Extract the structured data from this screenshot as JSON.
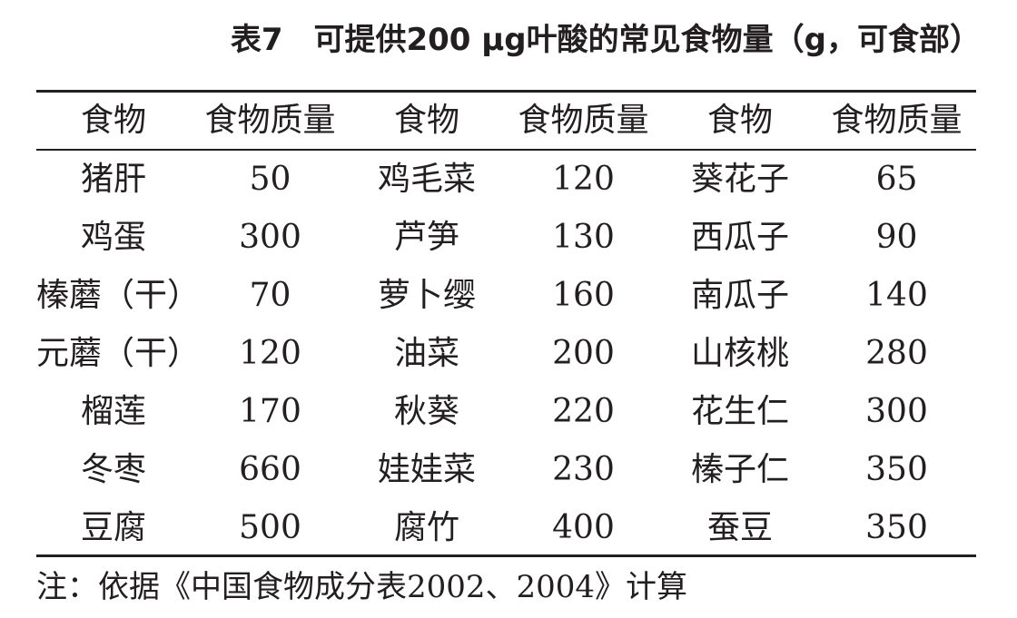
{
  "table": {
    "caption": "表7　可提供200 μg叶酸的常见食物量（g，可食部）",
    "headers": [
      "食物",
      "食物质量",
      "食物",
      "食物质量",
      "食物",
      "食物质量"
    ],
    "rows": [
      [
        "猪肝",
        "50",
        "鸡毛菜",
        "120",
        "葵花子",
        "65"
      ],
      [
        "鸡蛋",
        "300",
        "芦笋",
        "130",
        "西瓜子",
        "90"
      ],
      [
        "榛蘑（干）",
        "70",
        "萝卜缨",
        "160",
        "南瓜子",
        "140"
      ],
      [
        "元蘑（干）",
        "120",
        "油菜",
        "200",
        "山核桃",
        "280"
      ],
      [
        "榴莲",
        "170",
        "秋葵",
        "220",
        "花生仁",
        "300"
      ],
      [
        "冬枣",
        "660",
        "娃娃菜",
        "230",
        "榛子仁",
        "350"
      ],
      [
        "豆腐",
        "500",
        "腐竹",
        "400",
        "蚕豆",
        "350"
      ]
    ],
    "note": "注：依据《中国食物成分表2002、2004》计算"
  }
}
